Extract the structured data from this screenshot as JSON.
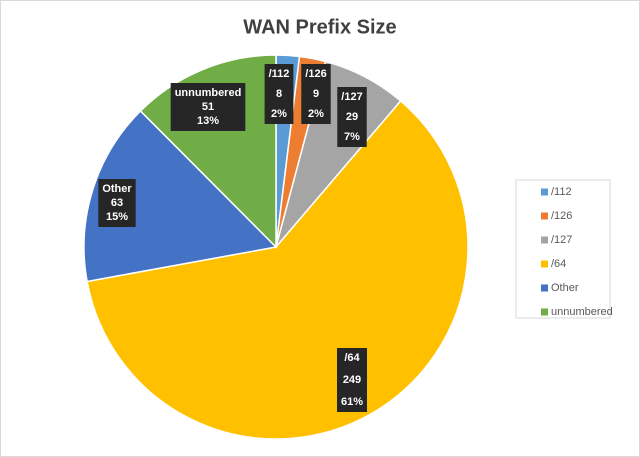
{
  "chart_data": {
    "type": "pie",
    "title": "WAN Prefix Size",
    "categories": [
      "/112",
      "/126",
      "/127",
      "/64",
      "Other",
      "unnumbered"
    ],
    "values": [
      8,
      9,
      29,
      249,
      63,
      51
    ],
    "percent_labels": [
      "2%",
      "2%",
      "7%",
      "61%",
      "15%",
      "13%"
    ],
    "colors": [
      "#5b9bd5",
      "#ed7d31",
      "#a5a5a5",
      "#ffc000",
      "#4472c4",
      "#70ad47"
    ],
    "legend": "right"
  }
}
